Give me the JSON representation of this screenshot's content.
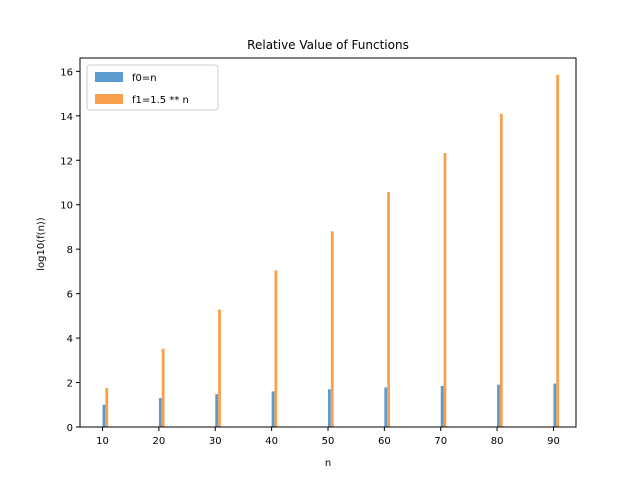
{
  "chart_data": {
    "type": "bar",
    "title": "Relative Value of Functions",
    "xlabel": "n",
    "ylabel": "log10(f(n))",
    "x": [
      10,
      20,
      30,
      40,
      50,
      60,
      70,
      80,
      90
    ],
    "xticks": [
      10,
      20,
      30,
      40,
      50,
      60,
      70,
      80,
      90
    ],
    "xlim": [
      6,
      94
    ],
    "ylim": [
      0,
      16.6
    ],
    "yticks": [
      0,
      2,
      4,
      6,
      8,
      10,
      12,
      14,
      16
    ],
    "grid": false,
    "legend_position": "top-left",
    "series": [
      {
        "name": "f0=n",
        "color": "#5b9bd0",
        "values": [
          1.0,
          1.301,
          1.477,
          1.602,
          1.699,
          1.778,
          1.845,
          1.903,
          1.954
        ]
      },
      {
        "name": "f1=1.5 ** n",
        "color": "#f9a04f",
        "values": [
          1.761,
          3.522,
          5.283,
          7.044,
          8.805,
          10.566,
          12.327,
          14.088,
          15.849
        ]
      }
    ]
  }
}
